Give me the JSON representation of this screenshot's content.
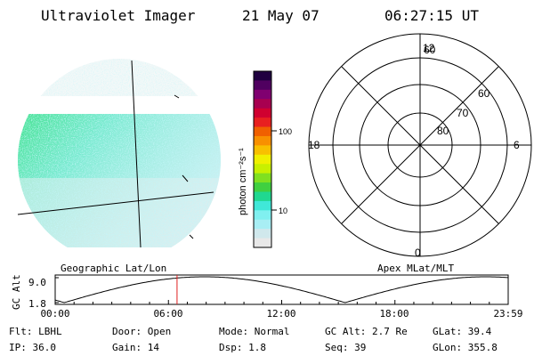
{
  "header": {
    "title": "Ultraviolet Imager",
    "date": "21 May 07",
    "time": "06:27:15 UT"
  },
  "colorbar": {
    "label": "photon cm⁻²s⁻¹",
    "ticks": [
      "100",
      "10"
    ],
    "colors": [
      "#e8e8e8",
      "#d0e8ec",
      "#a8eef4",
      "#80f0f0",
      "#40e8d8",
      "#20d890",
      "#40d040",
      "#80e020",
      "#c8f000",
      "#f0f000",
      "#f8c000",
      "#f89000",
      "#f06000",
      "#e82020",
      "#d00030",
      "#a80050",
      "#800070",
      "#500060",
      "#200040"
    ]
  },
  "polar": {
    "lat_labels": [
      "60",
      "70",
      "80"
    ],
    "mlt_labels": {
      "top": "12",
      "left": "18",
      "right": "6",
      "bottom": "0"
    }
  },
  "timeline": {
    "left_label": "Geographic Lat/Lon",
    "right_label": "Apex MLat/MLT",
    "axis_label": "GC Alt",
    "y_ticks": [
      "9.0",
      "1.8"
    ],
    "x_ticks": [
      "00:00",
      "06:00",
      "12:00",
      "18:00",
      "23:59"
    ],
    "current_time_fraction": 0.269
  },
  "info": {
    "flt": "Flt: LBHL",
    "ip": "IP: 36.0",
    "door": "Door: Open",
    "gain": "Gain: 14",
    "mode": "Mode: Normal",
    "dsp": "Dsp:    1.8",
    "gcalt": "GC Alt: 2.7 Re",
    "seq": "Seq: 39",
    "glat": "GLat:  39.4",
    "glon": "GLon: 355.8"
  }
}
